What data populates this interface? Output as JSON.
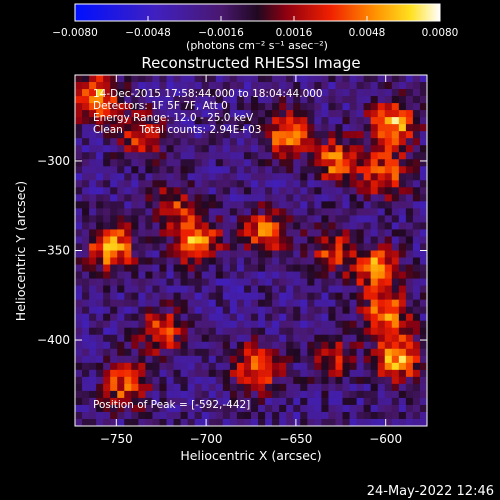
{
  "colorbar": {
    "min": -0.008,
    "max": 0.008,
    "tick_labels": [
      "-0.0080",
      "-0.0048",
      "-0.0016",
      "0.0016",
      "0.0048",
      "0.0080"
    ],
    "units_label": "(photons cm⁻² s⁻¹ asec⁻²)"
  },
  "chart_data": {
    "type": "heatmap",
    "title": "Reconstructed RHESSI Image",
    "xlabel": "Heliocentric X (arcsec)",
    "ylabel": "Heliocentric Y (arcsec)",
    "xlim": [
      -773,
      -577
    ],
    "ylim": [
      -448,
      -252
    ],
    "x_ticks": [
      -750,
      -700,
      -650,
      -600
    ],
    "y_ticks": [
      -300,
      -350,
      -400
    ],
    "x_tick_labels": [
      "−750",
      "−700",
      "−650",
      "−600"
    ],
    "y_tick_labels": [
      "−300",
      "−350",
      "−400"
    ],
    "value_range": [
      -0.008,
      0.008
    ],
    "sources": [
      {
        "x": -761,
        "y": -265,
        "peak": 0.0075
      },
      {
        "x": -735,
        "y": -285,
        "peak": 0.0055
      },
      {
        "x": -655,
        "y": -285,
        "peak": 0.007
      },
      {
        "x": -596,
        "y": -280,
        "peak": 0.008
      },
      {
        "x": -627,
        "y": -300,
        "peak": 0.0065
      },
      {
        "x": -600,
        "y": -308,
        "peak": 0.006
      },
      {
        "x": -753,
        "y": -348,
        "peak": 0.008
      },
      {
        "x": -705,
        "y": -345,
        "peak": 0.0075
      },
      {
        "x": -718,
        "y": -325,
        "peak": 0.0045
      },
      {
        "x": -667,
        "y": -340,
        "peak": 0.006
      },
      {
        "x": -630,
        "y": -350,
        "peak": 0.005
      },
      {
        "x": -605,
        "y": -360,
        "peak": 0.007
      },
      {
        "x": -725,
        "y": -395,
        "peak": 0.0055
      },
      {
        "x": -672,
        "y": -415,
        "peak": 0.007
      },
      {
        "x": -593,
        "y": -410,
        "peak": 0.008
      },
      {
        "x": -600,
        "y": -385,
        "peak": 0.0065
      },
      {
        "x": -630,
        "y": -410,
        "peak": 0.0045
      },
      {
        "x": -745,
        "y": -425,
        "peak": 0.006
      }
    ],
    "annotations": [
      "14-Dec-2015 17:58:44.000 to 18:04:44.000",
      "Detectors: 1F 5F 7F, Att 0",
      "Energy Range: 12.0 - 25.0 keV",
      "Clean     Total counts: 2.94E+03"
    ],
    "peak_label": "Position of Peak = [-592,-442]"
  },
  "footer": {
    "date": "24-May-2022 12:46"
  }
}
